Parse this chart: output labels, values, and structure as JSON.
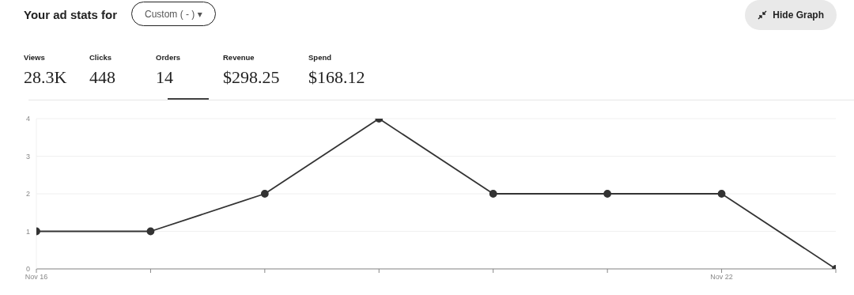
{
  "chart_data": {
    "type": "line",
    "title": "Your ad stats for",
    "annotations": [
      "Custom ( - ) ▾",
      "Hide Graph",
      "Views",
      "28.3K",
      "Clicks",
      "448",
      "Orders",
      "14",
      "Revenue",
      "$298.25",
      "Spend",
      "$168.12"
    ],
    "categories": [
      "Nov 16",
      null,
      null,
      null,
      null,
      null,
      "Nov 22",
      null
    ],
    "series": [
      {
        "color": "#333333",
        "values": [
          1,
          1,
          2,
          4,
          2,
          2,
          2,
          0
        ]
      }
    ],
    "ylim": [
      0,
      4
    ],
    "yticks": [
      0,
      1,
      2,
      3,
      4
    ],
    "grid": "y",
    "marker": "circle"
  }
}
